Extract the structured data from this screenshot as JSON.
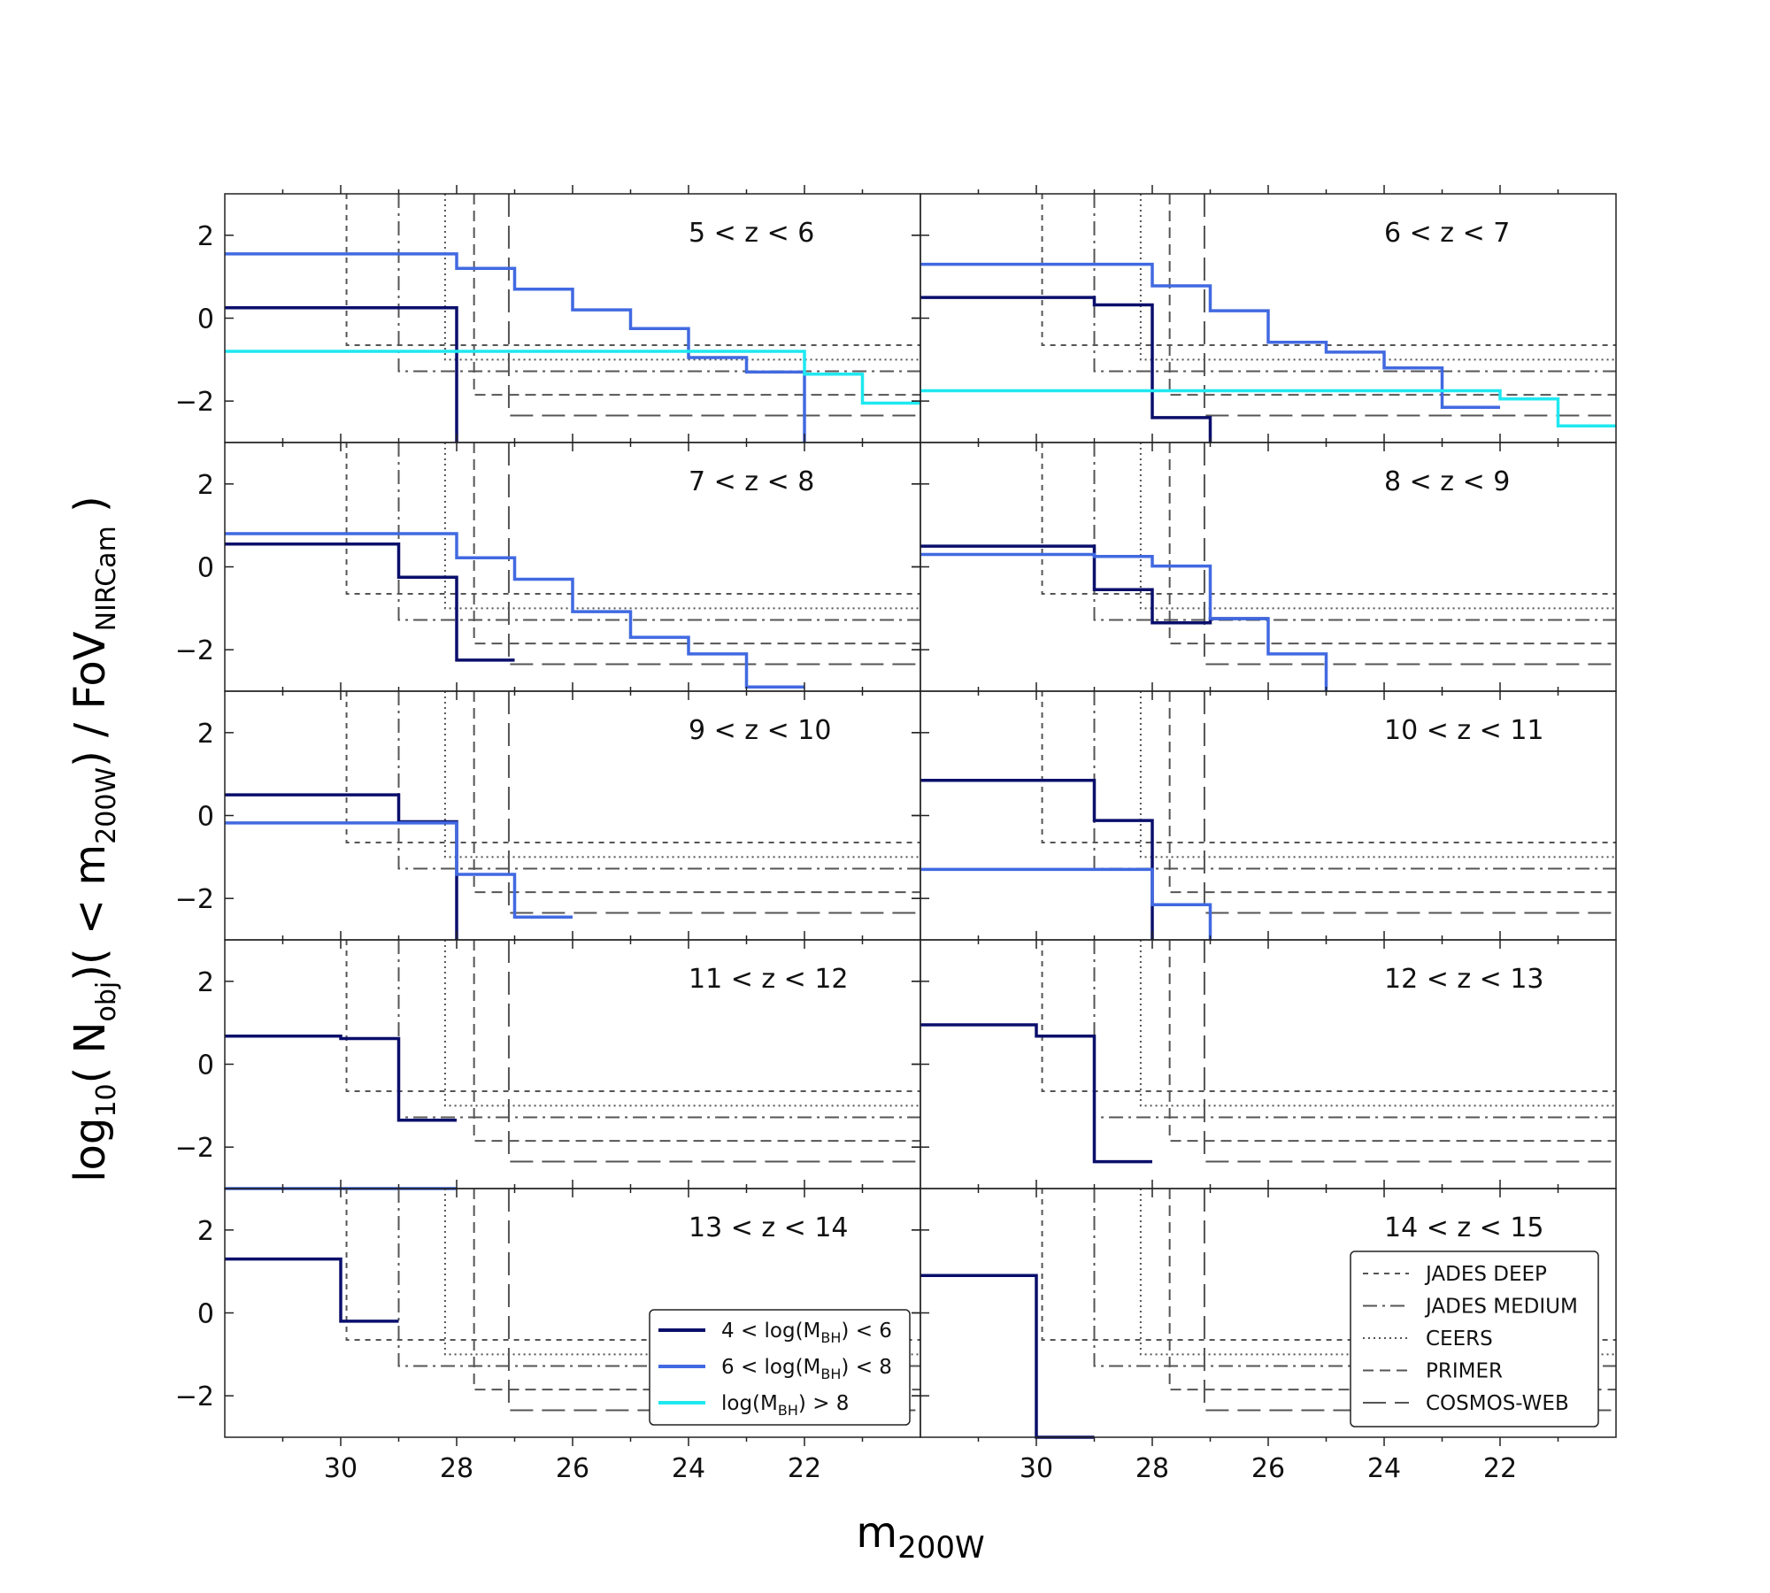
{
  "chart_data": {
    "type": "line",
    "subtype": "step",
    "title": "",
    "ylabel": {
      "prefix": "log",
      "prefix_sub": "10",
      "mid": "( N",
      "mid_sub": "obj",
      "mid2": ")( < m",
      "mid2_sub": "200W",
      "end": ") / FoV",
      "end_sub": "NIRCam",
      "close": " )"
    },
    "xlabel": {
      "main": "m",
      "sub": "200W"
    },
    "xlim": [
      32,
      20
    ],
    "ylim": [
      -3,
      3
    ],
    "xticks": [
      30,
      28,
      26,
      24,
      22
    ],
    "xtick_labels": [
      "30",
      "28",
      "26",
      "24",
      "22"
    ],
    "yticks": [
      2,
      0,
      -2
    ],
    "ytick_labels": [
      "2",
      "0",
      "−2"
    ],
    "colors": {
      "low": "#0a0f6b",
      "mid": "#4169e1",
      "high": "#1ee8f0",
      "survey": "#555555"
    },
    "surveys": [
      {
        "name": "JADES DEEP",
        "maglim": 29.9,
        "y": -0.65,
        "style": "short-dash"
      },
      {
        "name": "JADES MEDIUM",
        "maglim": 29.0,
        "y": -1.28,
        "style": "dash-dot"
      },
      {
        "name": "CEERS",
        "maglim": 28.2,
        "y": -1.0,
        "style": "dotted"
      },
      {
        "name": "PRIMER",
        "maglim": 27.7,
        "y": -1.85,
        "style": "dash"
      },
      {
        "name": "COSMOS-WEB",
        "maglim": 27.1,
        "y": -2.35,
        "style": "long-dash"
      }
    ],
    "series_legend": [
      {
        "key": "low",
        "text": "4 < log(M",
        "sub": "BH",
        "tail": ") < 6"
      },
      {
        "key": "mid",
        "text": "6 < log(M",
        "sub": "BH",
        "tail": ") < 8"
      },
      {
        "key": "high",
        "text": "log(M",
        "sub": "BH",
        "tail": ") > 8"
      }
    ],
    "panels": [
      {
        "label": "5 < z < 6",
        "series": [
          {
            "key": "low",
            "x": [
              32,
              28,
              28
            ],
            "y": [
              0.25,
              0.25,
              -3
            ]
          },
          {
            "key": "mid",
            "x": [
              32,
              28,
              28,
              27,
              27,
              26,
              26,
              25,
              25,
              24,
              24,
              23,
              23,
              22,
              22
            ],
            "y": [
              1.55,
              1.55,
              1.2,
              1.2,
              0.7,
              0.7,
              0.2,
              0.2,
              -0.25,
              -0.25,
              -0.95,
              -0.95,
              -1.3,
              -1.3,
              -3
            ]
          },
          {
            "key": "high",
            "x": [
              32,
              22,
              22,
              21,
              21,
              20
            ],
            "y": [
              -0.8,
              -0.8,
              -1.35,
              -1.35,
              -2.05,
              -2.05
            ]
          }
        ]
      },
      {
        "label": "6 < z < 7",
        "series": [
          {
            "key": "low",
            "x": [
              32,
              29,
              29,
              28,
              28,
              27,
              27
            ],
            "y": [
              0.5,
              0.5,
              0.32,
              0.32,
              -2.4,
              -2.4,
              -3
            ]
          },
          {
            "key": "mid",
            "x": [
              32,
              28,
              28,
              27,
              27,
              26,
              26,
              25,
              25,
              24,
              24,
              23,
              23,
              22
            ],
            "y": [
              1.3,
              1.3,
              0.78,
              0.78,
              0.18,
              0.18,
              -0.58,
              -0.58,
              -0.82,
              -0.82,
              -1.2,
              -1.2,
              -2.15,
              -2.15
            ]
          },
          {
            "key": "high",
            "x": [
              32,
              22,
              22,
              21,
              21,
              20
            ],
            "y": [
              -1.75,
              -1.75,
              -1.95,
              -1.95,
              -2.6,
              -2.6
            ]
          }
        ]
      },
      {
        "label": "7 < z < 8",
        "series": [
          {
            "key": "low",
            "x": [
              32,
              29,
              29,
              28,
              28,
              27
            ],
            "y": [
              0.55,
              0.55,
              -0.25,
              -0.25,
              -2.25,
              -2.25
            ]
          },
          {
            "key": "mid",
            "x": [
              32,
              28,
              28,
              27,
              27,
              26,
              26,
              25,
              25,
              24,
              24,
              23,
              23,
              22
            ],
            "y": [
              0.8,
              0.8,
              0.22,
              0.22,
              -0.3,
              -0.3,
              -1.08,
              -1.08,
              -1.7,
              -1.7,
              -2.1,
              -2.1,
              -2.9,
              -2.9
            ]
          }
        ]
      },
      {
        "label": "8 < z < 9",
        "series": [
          {
            "key": "low",
            "x": [
              32,
              29,
              29,
              28,
              28,
              27,
              27,
              26
            ],
            "y": [
              0.5,
              0.5,
              -0.55,
              -0.55,
              -1.35,
              -1.35,
              -1.25,
              -1.25
            ]
          },
          {
            "key": "mid",
            "x": [
              32,
              29,
              29,
              28,
              28,
              27,
              27,
              26,
              26,
              25,
              25
            ],
            "y": [
              0.3,
              0.3,
              0.25,
              0.25,
              0.02,
              0.02,
              -1.25,
              -1.25,
              -2.1,
              -2.1,
              -3
            ]
          }
        ]
      },
      {
        "label": "9 < z < 10",
        "series": [
          {
            "key": "low",
            "x": [
              32,
              29,
              29,
              28,
              28
            ],
            "y": [
              0.5,
              0.5,
              -0.15,
              -0.15,
              -3
            ]
          },
          {
            "key": "mid",
            "x": [
              32,
              28,
              28,
              27,
              27,
              26
            ],
            "y": [
              -0.18,
              -0.18,
              -1.42,
              -1.42,
              -2.45,
              -2.45
            ]
          }
        ]
      },
      {
        "label": "10 < z < 11",
        "series": [
          {
            "key": "low",
            "x": [
              32,
              29,
              29,
              28,
              28
            ],
            "y": [
              0.85,
              0.85,
              -0.12,
              -0.12,
              -3
            ]
          },
          {
            "key": "mid",
            "x": [
              32,
              28,
              28,
              27,
              27
            ],
            "y": [
              -1.3,
              -1.3,
              -2.15,
              -2.15,
              -3
            ]
          }
        ]
      },
      {
        "label": "11 < z < 12",
        "series": [
          {
            "key": "low",
            "x": [
              32,
              30,
              30,
              29,
              29,
              28
            ],
            "y": [
              0.68,
              0.68,
              0.62,
              0.62,
              -1.35,
              -1.35
            ]
          },
          {
            "key": "mid",
            "x": [
              32,
              28
            ],
            "y": [
              -3,
              -3
            ]
          }
        ]
      },
      {
        "label": "12 < z < 13",
        "series": [
          {
            "key": "low",
            "x": [
              32,
              30,
              30,
              29,
              29,
              28
            ],
            "y": [
              0.95,
              0.95,
              0.68,
              0.68,
              -2.35,
              -2.35
            ]
          }
        ]
      },
      {
        "label": "13 < z < 14",
        "series": [
          {
            "key": "low",
            "x": [
              32,
              30,
              30,
              29
            ],
            "y": [
              1.3,
              1.3,
              -0.2,
              -0.2
            ]
          }
        ]
      },
      {
        "label": "14 < z < 15",
        "series": [
          {
            "key": "low",
            "x": [
              32,
              30,
              30,
              29
            ],
            "y": [
              0.9,
              0.9,
              -3,
              -3
            ]
          }
        ]
      }
    ]
  }
}
